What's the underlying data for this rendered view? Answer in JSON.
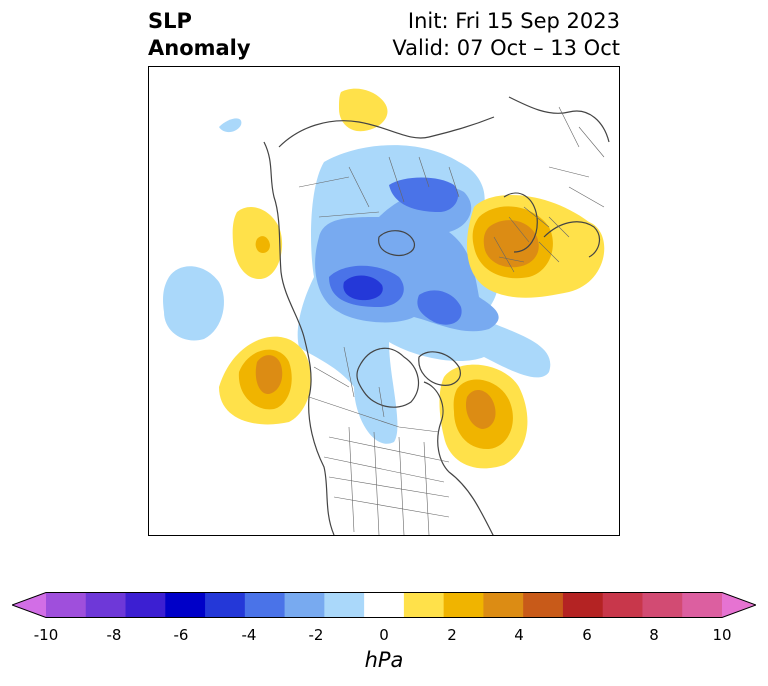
{
  "header": {
    "title_line1": "SLP",
    "title_line2": "Anomaly",
    "init": "Init: Fri 15 Sep 2023",
    "valid": "Valid: 07 Oct – 13 Oct"
  },
  "map": {
    "projection": "north polar stereographic",
    "variable": "SLP anomaly"
  },
  "colorbar": {
    "unit": "hPa",
    "ticks": [
      "-10",
      "-8",
      "-6",
      "-4",
      "-2",
      "0",
      "2",
      "4",
      "6",
      "8",
      "10"
    ],
    "levels": [
      -10,
      -9,
      -8,
      -7,
      -6,
      -5,
      -4,
      -3,
      -2,
      -1,
      1,
      2,
      3,
      4,
      5,
      6,
      7,
      8,
      9,
      10
    ],
    "colors": [
      "#d26ee6",
      "#9f4fdc",
      "#6e38d8",
      "#3c1fd2",
      "#0000c8",
      "#2438d8",
      "#4a73e8",
      "#78aaf0",
      "#aad8fa",
      "#ffffff",
      "#ffe14a",
      "#f0b400",
      "#dc8c14",
      "#c85a19",
      "#b42323",
      "#c8374b",
      "#d24b73",
      "#dc5fa0",
      "#e673d2"
    ],
    "extend": "both"
  }
}
